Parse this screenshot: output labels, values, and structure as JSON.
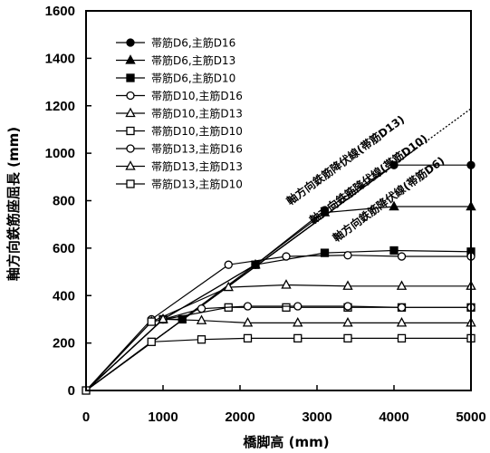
{
  "chart_data": {
    "type": "line",
    "xlabel": "橋脚高 (mm)",
    "ylabel": "軸方向鉄筋座屈長 (mm)",
    "xlim": [
      0,
      5000
    ],
    "ylim": [
      0,
      1600
    ],
    "xticks": [
      0,
      1000,
      2000,
      3000,
      4000,
      5000
    ],
    "yticks": [
      0,
      200,
      400,
      600,
      800,
      1000,
      1200,
      1400,
      1600
    ],
    "grid": false,
    "legend_position": "top-left",
    "series": [
      {
        "name": "帯筋D6,主筋D16",
        "marker": "filled-circle",
        "x": [
          0,
          1000,
          2200,
          3100,
          4000,
          5000
        ],
        "y": [
          0,
          300,
          530,
          760,
          950,
          950
        ]
      },
      {
        "name": "帯筋D6,主筋D13",
        "marker": "filled-triangle",
        "x": [
          0,
          1000,
          2200,
          3100,
          4000,
          5000
        ],
        "y": [
          0,
          300,
          530,
          750,
          775,
          775
        ]
      },
      {
        "name": "帯筋D6,主筋D10",
        "marker": "filled-square",
        "x": [
          0,
          1000,
          1250,
          2200,
          3100,
          4000,
          5000
        ],
        "y": [
          0,
          300,
          300,
          530,
          580,
          590,
          585
        ]
      },
      {
        "name": "帯筋D10,主筋D16",
        "marker": "open-circle",
        "x": [
          0,
          850,
          1850,
          2600,
          3400,
          4100,
          5000
        ],
        "y": [
          0,
          300,
          530,
          565,
          570,
          565,
          565
        ]
      },
      {
        "name": "帯筋D10,主筋D13",
        "marker": "open-triangle",
        "x": [
          0,
          850,
          1850,
          2600,
          3400,
          4100,
          5000
        ],
        "y": [
          0,
          290,
          435,
          445,
          440,
          440,
          440
        ]
      },
      {
        "name": "帯筋D10,主筋D10",
        "marker": "open-square",
        "x": [
          0,
          850,
          1850,
          2600,
          3400,
          4100,
          5000
        ],
        "y": [
          0,
          290,
          350,
          350,
          350,
          350,
          350
        ]
      },
      {
        "name": "帯筋D13,主筋D16",
        "marker": "open-circle",
        "x": [
          0,
          1000,
          1500,
          2100,
          2750,
          3400,
          4100,
          5000
        ],
        "y": [
          0,
          300,
          345,
          355,
          355,
          355,
          350,
          350
        ]
      },
      {
        "name": "帯筋D13,主筋D13",
        "marker": "open-triangle",
        "x": [
          0,
          1000,
          1500,
          2100,
          2750,
          3400,
          4100,
          5000
        ],
        "y": [
          0,
          300,
          295,
          285,
          285,
          285,
          285,
          285
        ]
      },
      {
        "name": "帯筋D13,主筋D10",
        "marker": "open-square",
        "x": [
          0,
          850,
          1500,
          2100,
          2750,
          3400,
          4100,
          5000
        ],
        "y": [
          0,
          205,
          215,
          220,
          220,
          220,
          220,
          220
        ]
      }
    ],
    "reference_lines": [
      {
        "label": "軸方向鉄筋降伏線(帯筋D13)",
        "style": "solid",
        "x": [
          0,
          4000
        ],
        "y": [
          0,
          950
        ]
      },
      {
        "label": "軸方向鉄筋降伏線(帯筋D10)",
        "style": "solid",
        "x": [
          0,
          4300
        ],
        "y": [
          0,
          1022
        ]
      },
      {
        "label": "軸方向鉄筋降伏線(帯筋D6)",
        "style": "dotted",
        "x": [
          0,
          5000
        ],
        "y": [
          0,
          1188
        ]
      }
    ]
  }
}
